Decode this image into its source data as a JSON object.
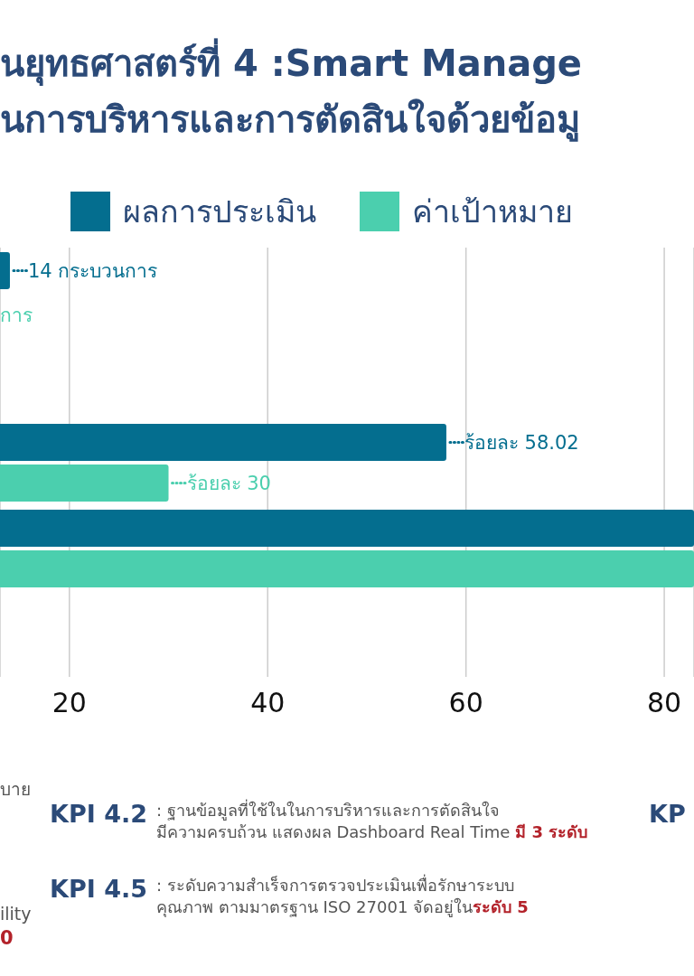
{
  "chart_data": {
    "type": "bar",
    "orientation": "horizontal",
    "title": "นยุทธศาสตร์ที่ 4 :Smart Manage",
    "subtitle": "นการบริหารและการตัดสินใจด้วยข้อมู",
    "categories": [
      null,
      null,
      null,
      null,
      null
    ],
    "series": [
      {
        "name": "ผลการประเมิน",
        "color": "#046e8f",
        "values": [
          14,
          null,
          58.02,
          83,
          null
        ],
        "value_labels": [
          "14 กระบวนการ",
          null,
          "ร้อยละ 58.02",
          null,
          null
        ]
      },
      {
        "name": "ค่าเป้าหมาย",
        "color": "#4bcfae",
        "values": [
          null,
          null,
          30,
          83,
          null
        ],
        "value_labels": [
          null,
          null,
          "ร้อยละ 30",
          null,
          null
        ]
      }
    ],
    "xlim": [
      13,
      83
    ],
    "xticks": [
      20,
      40,
      60,
      80
    ],
    "grid": "x",
    "legend": "top",
    "tick_labels": "x",
    "annotations": [
      "การ",
      "บาย",
      "ility",
      "0",
      "KPI 4.2",
      ": ฐานข้อมูลที่ใช้ในในการบริหารและการตัดสินใจ",
      "มีความครบถ้วน  แสดงผล Dashboard Real Time",
      "มี 3 ระดับ",
      "KP",
      "KPI 4.5",
      ": ระดับความสำเร็จการตรวจประเมินเพื่อรักษาระบบ",
      "คุณภาพ ตามมาตรฐาน ISO 27001 จัดอยู่ใน",
      "ระดับ 5"
    ]
  }
}
